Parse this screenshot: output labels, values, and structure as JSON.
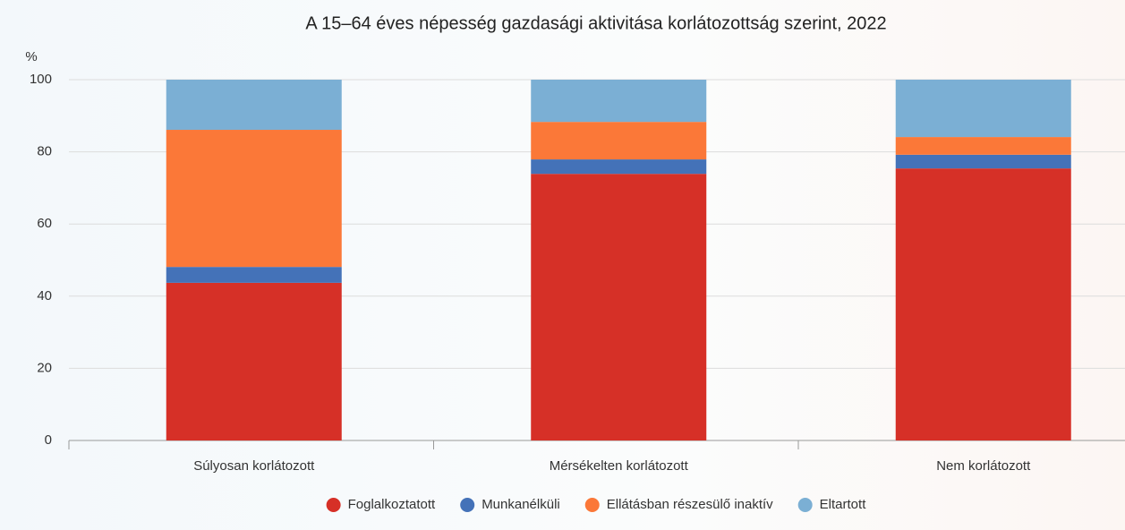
{
  "chart_data": {
    "type": "stacked-bar",
    "title": "A 15–64 éves népesség gazdasági aktivitása korlátozottság szerint, 2022",
    "y_label": "%",
    "categories": [
      "Súlyosan korlátozott",
      "Mérsékelten korlátozott",
      "Nem korlátozott"
    ],
    "series": [
      {
        "name": "Foglalkoztatott",
        "color": "#d63027",
        "values": [
          43.7,
          73.9,
          75.4
        ]
      },
      {
        "name": "Munkanélküli",
        "color": "#4472b8",
        "values": [
          4.4,
          4.0,
          3.8
        ]
      },
      {
        "name": "Ellátásban részesülő inaktív",
        "color": "#fb7838",
        "values": [
          38.0,
          10.4,
          4.9
        ]
      },
      {
        "name": "Eltartott",
        "color": "#7bafd4",
        "values": [
          13.9,
          11.7,
          15.9
        ]
      }
    ],
    "ylim": [
      0,
      100
    ],
    "yticks": [
      0,
      20,
      40,
      60,
      80,
      100
    ],
    "grid": true
  }
}
